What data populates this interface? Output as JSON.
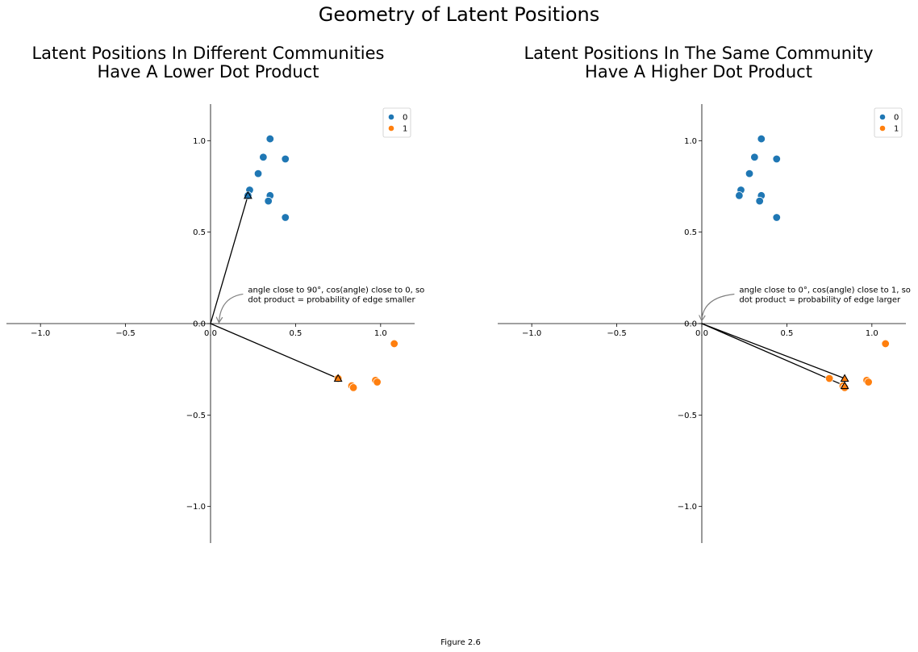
{
  "figure": {
    "suptitle": "Geometry of Latent Positions",
    "caption": "Figure 2.6"
  },
  "colors": {
    "community_0": "#1f77b4",
    "community_1": "#ff7f0e",
    "arrow": "#000000",
    "annot_arrow": "#808080"
  },
  "chart_data": [
    {
      "type": "scatter",
      "title_lines": [
        "Latent Positions In Different Communities",
        "Have A Lower Dot Product"
      ],
      "xlim": [
        -1.2,
        1.2
      ],
      "ylim": [
        -1.2,
        1.2
      ],
      "xticks": [
        -1.0,
        -0.5,
        0.0,
        0.5,
        1.0
      ],
      "xtick_labels": [
        "−1.0",
        "−0.5",
        "0.0",
        "0.5",
        "1.0"
      ],
      "yticks": [
        -1.0,
        -0.5,
        0.0,
        0.5,
        1.0
      ],
      "ytick_labels": [
        "−1.0",
        "−0.5",
        "0.0",
        "0.5",
        "1.0"
      ],
      "grid": false,
      "legend_position": "top-right",
      "series": [
        {
          "name": "0",
          "x": [
            0.35,
            0.31,
            0.44,
            0.28,
            0.23,
            0.22,
            0.35,
            0.34,
            0.44
          ],
          "y": [
            1.01,
            0.91,
            0.9,
            0.82,
            0.73,
            0.7,
            0.7,
            0.67,
            0.58
          ]
        },
        {
          "name": "1",
          "x": [
            1.08,
            0.75,
            0.97,
            0.98,
            0.83,
            0.84
          ],
          "y": [
            -0.11,
            -0.3,
            -0.31,
            -0.32,
            -0.34,
            -0.35
          ]
        }
      ],
      "vectors": [
        {
          "x": 0.22,
          "y": 0.7,
          "marker_series": 0
        },
        {
          "x": 0.75,
          "y": -0.3,
          "marker_series": 1
        }
      ],
      "annotation": {
        "lines": [
          "angle close to 90°, cos(angle) close to 0, so",
          "dot product = probability of edge smaller"
        ],
        "text_x": 0.22,
        "text_y": 0.17,
        "arrow_to_x": 0.05,
        "arrow_to_y": 0.01
      }
    },
    {
      "type": "scatter",
      "title_lines": [
        "Latent Positions In The Same Community",
        "Have A Higher Dot Product"
      ],
      "xlim": [
        -1.2,
        1.2
      ],
      "ylim": [
        -1.2,
        1.2
      ],
      "xticks": [
        -1.0,
        -0.5,
        0.0,
        0.5,
        1.0
      ],
      "xtick_labels": [
        "−1.0",
        "−0.5",
        "0.0",
        "0.5",
        "1.0"
      ],
      "yticks": [
        -1.0,
        -0.5,
        0.0,
        0.5,
        1.0
      ],
      "ytick_labels": [
        "−1.0",
        "−0.5",
        "0.0",
        "0.5",
        "1.0"
      ],
      "grid": false,
      "legend_position": "top-right",
      "series": [
        {
          "name": "0",
          "x": [
            0.35,
            0.31,
            0.44,
            0.28,
            0.23,
            0.22,
            0.35,
            0.34,
            0.44
          ],
          "y": [
            1.01,
            0.91,
            0.9,
            0.82,
            0.73,
            0.7,
            0.7,
            0.67,
            0.58
          ]
        },
        {
          "name": "1",
          "x": [
            1.08,
            0.75,
            0.97,
            0.98,
            0.83,
            0.84
          ],
          "y": [
            -0.11,
            -0.3,
            -0.31,
            -0.32,
            -0.34,
            -0.35
          ]
        }
      ],
      "vectors": [
        {
          "x": 0.84,
          "y": -0.3,
          "marker_series": 1
        },
        {
          "x": 0.84,
          "y": -0.34,
          "marker_series": 1
        }
      ],
      "annotation": {
        "lines": [
          "angle close to 0°, cos(angle) close to 1, so",
          "dot product = probability of edge larger"
        ],
        "text_x": 0.22,
        "text_y": 0.17,
        "arrow_to_x": 0.0,
        "arrow_to_y": 0.02
      }
    }
  ]
}
